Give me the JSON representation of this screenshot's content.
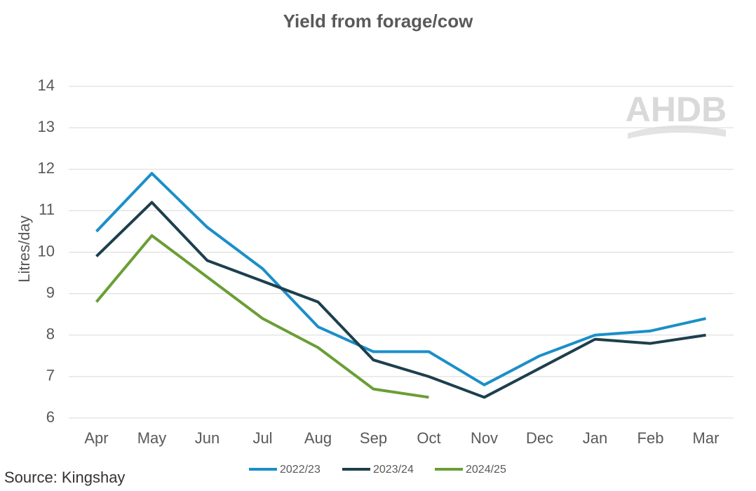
{
  "chart_data": {
    "type": "line",
    "title": "Yield from forage/cow",
    "y_label": "Litres/day",
    "source": "Source: Kingshay",
    "logo": "AHDB",
    "categories": [
      "Apr",
      "May",
      "Jun",
      "Jul",
      "Aug",
      "Sep",
      "Oct",
      "Nov",
      "Dec",
      "Jan",
      "Feb",
      "Mar"
    ],
    "series": [
      {
        "name": "2022/23",
        "color": "#1b8fc8",
        "values": [
          10.5,
          11.9,
          10.6,
          9.6,
          8.2,
          7.6,
          7.6,
          6.8,
          7.5,
          8.0,
          8.1,
          8.4
        ]
      },
      {
        "name": "2023/24",
        "color": "#1d3f4d",
        "values": [
          9.9,
          11.2,
          9.8,
          9.3,
          8.8,
          7.4,
          7.0,
          6.5,
          7.2,
          7.9,
          7.8,
          8.0
        ]
      },
      {
        "name": "2024/25",
        "color": "#6a9e35",
        "values": [
          8.8,
          10.4,
          9.4,
          8.4,
          7.7,
          6.7,
          6.5,
          null,
          null,
          null,
          null,
          null
        ]
      }
    ],
    "ylim": [
      6,
      14
    ],
    "yticks": [
      6,
      7,
      8,
      9,
      10,
      11,
      12,
      13,
      14
    ],
    "grid": true,
    "legend": "bottom"
  }
}
